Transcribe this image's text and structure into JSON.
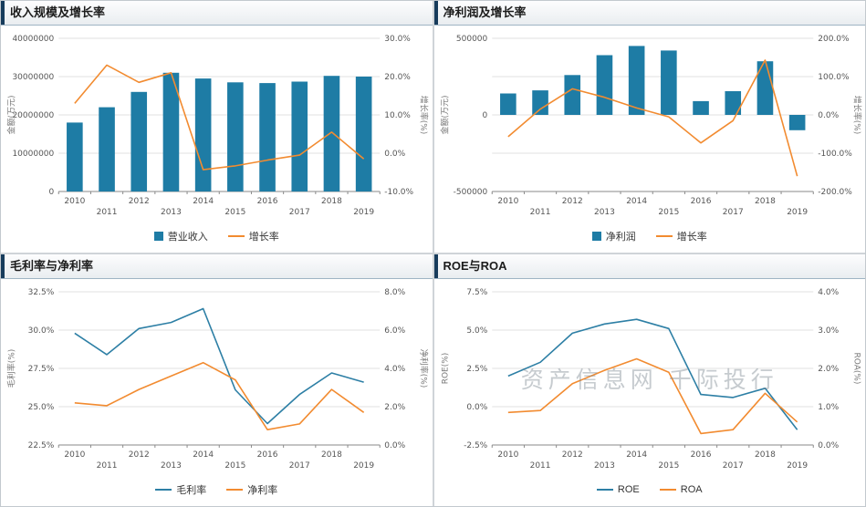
{
  "watermark": "资产信息网 千际投行",
  "colors": {
    "bar": "#1e7ca5",
    "line_orange": "#f28b30",
    "line_blue": "#2d7fa5",
    "grid": "#e2e2e2",
    "axis": "#8a8a8a",
    "header_accent": "#173c5c"
  },
  "chart_data": [
    {
      "type": "bar",
      "title": "收入规模及增长率",
      "categories": [
        "2010",
        "2011",
        "2012",
        "2013",
        "2014",
        "2015",
        "2016",
        "2017",
        "2018",
        "2019"
      ],
      "left_axis": {
        "label": "金额(万元)",
        "min": 0,
        "max": 40000000,
        "ticks": [
          "40000000",
          "30000000",
          "20000000",
          "10000000",
          "0"
        ]
      },
      "right_axis": {
        "label": "增长率(%)",
        "min": -10,
        "max": 30,
        "ticks": [
          "30.0%",
          "20.0%",
          "10.0%",
          "0.0%",
          "-10.0%"
        ]
      },
      "grid": true,
      "legend_position": "bottom",
      "series": [
        {
          "name": "营业收入",
          "kind": "bar",
          "axis": "left",
          "color": "#1e7ca5",
          "values": [
            18000000,
            22000000,
            26000000,
            31000000,
            29500000,
            28500000,
            28300000,
            28700000,
            30200000,
            30000000
          ]
        },
        {
          "name": "增长率",
          "kind": "line",
          "axis": "right",
          "color": "#f28b30",
          "values": [
            13,
            23,
            18.5,
            21,
            -4.3,
            -3.3,
            -1.8,
            -0.5,
            5.5,
            -1.5
          ]
        }
      ]
    },
    {
      "type": "bar",
      "title": "净利润及增长率",
      "categories": [
        "2010",
        "2011",
        "2012",
        "2013",
        "2014",
        "2015",
        "2016",
        "2017",
        "2018",
        "2019"
      ],
      "left_axis": {
        "label": "金额(万元)",
        "min": -500000,
        "max": 500000,
        "ticks": [
          "500000",
          "",
          "0",
          "",
          "-500000"
        ]
      },
      "right_axis": {
        "label": "增长率(%)",
        "min": -200,
        "max": 200,
        "ticks": [
          "200.0%",
          "100.0%",
          "0.0%",
          "-100.0%",
          "-200.0%"
        ]
      },
      "grid": true,
      "legend_position": "bottom",
      "series": [
        {
          "name": "净利润",
          "kind": "bar",
          "axis": "left",
          "color": "#1e7ca5",
          "values": [
            140000,
            160000,
            260000,
            390000,
            450000,
            420000,
            90000,
            155000,
            350000,
            -100000
          ]
        },
        {
          "name": "增长率",
          "kind": "line",
          "axis": "right",
          "color": "#f28b30",
          "values": [
            -57,
            15,
            68,
            46,
            18,
            -5,
            -73,
            -15,
            143,
            -160
          ]
        }
      ]
    },
    {
      "type": "line",
      "title": "毛利率与净利率",
      "categories": [
        "2010",
        "2011",
        "2012",
        "2013",
        "2014",
        "2015",
        "2016",
        "2017",
        "2018",
        "2019"
      ],
      "left_axis": {
        "label": "毛利率(%)",
        "min": 22.5,
        "max": 32.5,
        "ticks": [
          "32.5%",
          "30.0%",
          "27.5%",
          "25.0%",
          "22.5%"
        ]
      },
      "right_axis": {
        "label": "净利率(%)",
        "min": 0,
        "max": 8,
        "ticks": [
          "8.0%",
          "6.0%",
          "4.0%",
          "2.0%",
          "0.0%"
        ]
      },
      "grid": true,
      "legend_position": "bottom",
      "series": [
        {
          "name": "毛利率",
          "kind": "line",
          "axis": "left",
          "color": "#2d7fa5",
          "values": [
            29.8,
            28.4,
            30.1,
            30.5,
            31.4,
            26.1,
            23.9,
            25.8,
            27.2,
            26.6
          ]
        },
        {
          "name": "净利率",
          "kind": "line",
          "axis": "right",
          "color": "#f28b30",
          "values": [
            2.2,
            2.05,
            2.9,
            3.6,
            4.3,
            3.4,
            0.8,
            1.1,
            2.9,
            1.7
          ]
        }
      ]
    },
    {
      "type": "line",
      "title": "ROE与ROA",
      "categories": [
        "2010",
        "2011",
        "2012",
        "2013",
        "2014",
        "2015",
        "2016",
        "2017",
        "2018",
        "2019"
      ],
      "left_axis": {
        "label": "ROE(%)",
        "min": -2.5,
        "max": 7.5,
        "ticks": [
          "7.5%",
          "5.0%",
          "2.5%",
          "0.0%",
          "-2.5%"
        ]
      },
      "right_axis": {
        "label": "ROA(%)",
        "min": 0,
        "max": 4,
        "ticks": [
          "4.0%",
          "3.0%",
          "2.0%",
          "1.0%",
          "0.0%"
        ]
      },
      "grid": true,
      "legend_position": "bottom",
      "series": [
        {
          "name": "ROE",
          "kind": "line",
          "axis": "left",
          "color": "#2d7fa5",
          "values": [
            2.0,
            2.9,
            4.8,
            5.4,
            5.7,
            5.1,
            0.8,
            0.6,
            1.2,
            -1.5
          ]
        },
        {
          "name": "ROA",
          "kind": "line",
          "axis": "right",
          "color": "#f28b30",
          "values": [
            0.85,
            0.9,
            1.6,
            1.95,
            2.25,
            1.9,
            0.3,
            0.4,
            1.35,
            0.6
          ]
        }
      ]
    }
  ]
}
